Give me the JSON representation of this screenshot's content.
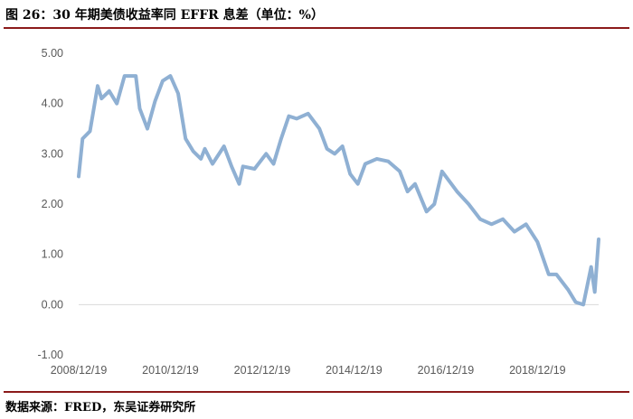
{
  "header": {
    "title": "图 26：30 年期美债收益率同 EFFR 息差（单位：%）"
  },
  "footer": {
    "source": "数据来源：FRED，东吴证券研究所"
  },
  "chart_data": {
    "type": "line",
    "title": "",
    "xlabel": "",
    "ylabel": "",
    "ylim": [
      -1.0,
      5.0
    ],
    "y_ticks": [
      "5.00",
      "4.00",
      "3.00",
      "2.00",
      "1.00",
      "0.00",
      "-1.00"
    ],
    "x_range": [
      "2008/12/19",
      "2020/04/19"
    ],
    "x_ticks": [
      "2008/12/19",
      "2010/12/19",
      "2012/12/19",
      "2014/12/19",
      "2016/12/19",
      "2018/12/19"
    ],
    "line_color": "#8fb0d3",
    "grid": false,
    "series": [
      {
        "x": [
          "2008/12/19",
          "2009/01/19",
          "2009/03/19",
          "2009/05/19",
          "2009/06/19",
          "2009/08/19",
          "2009/10/19",
          "2009/12/19",
          "2010/03/19",
          "2010/04/19",
          "2010/06/19",
          "2010/08/19",
          "2010/10/19",
          "2010/12/19",
          "2011/02/19",
          "2011/04/19",
          "2011/06/19",
          "2011/08/19",
          "2011/09/19",
          "2011/11/19",
          "2012/02/19",
          "2012/04/19",
          "2012/06/19",
          "2012/07/19",
          "2012/10/19",
          "2013/01/19",
          "2013/03/19",
          "2013/05/19",
          "2013/07/19",
          "2013/09/19",
          "2013/12/19",
          "2014/03/19",
          "2014/05/19",
          "2014/07/19",
          "2014/09/19",
          "2014/11/19",
          "2015/01/19",
          "2015/03/19",
          "2015/06/19",
          "2015/09/19",
          "2015/12/19",
          "2016/02/19",
          "2016/04/19",
          "2016/07/19",
          "2016/09/19",
          "2016/11/19",
          "2017/03/19",
          "2017/06/19",
          "2017/09/19",
          "2017/12/19",
          "2018/03/19",
          "2018/06/19",
          "2018/09/19",
          "2018/12/19",
          "2019/03/19",
          "2019/05/19",
          "2019/08/19",
          "2019/10/19",
          "2019/12/19",
          "2020/02/19",
          "2020/03/19",
          "2020/04/19"
        ],
        "values": [
          2.55,
          3.3,
          3.45,
          4.35,
          4.1,
          4.25,
          4.0,
          4.55,
          4.55,
          3.9,
          3.5,
          4.05,
          4.45,
          4.55,
          4.2,
          3.3,
          3.05,
          2.9,
          3.1,
          2.8,
          3.15,
          2.75,
          2.4,
          2.75,
          2.7,
          3.0,
          2.8,
          3.3,
          3.75,
          3.7,
          3.8,
          3.5,
          3.1,
          3.0,
          3.15,
          2.6,
          2.4,
          2.8,
          2.9,
          2.85,
          2.65,
          2.25,
          2.4,
          1.85,
          2.0,
          2.65,
          2.25,
          2.0,
          1.7,
          1.6,
          1.7,
          1.45,
          1.6,
          1.25,
          0.6,
          0.6,
          0.3,
          0.05,
          0.0,
          0.75,
          0.25,
          1.3
        ]
      }
    ]
  }
}
